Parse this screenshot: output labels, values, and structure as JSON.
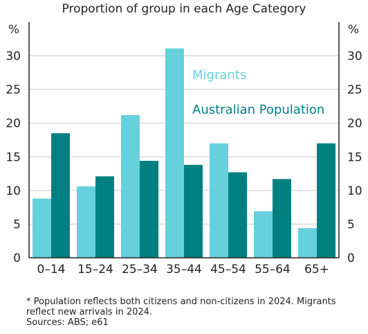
{
  "chart_data": {
    "type": "bar",
    "title": "Proportion of group in each Age Category",
    "unit_left": "%",
    "unit_right": "%",
    "categories": [
      "0–14",
      "15–24",
      "25–34",
      "35–44",
      "45–54",
      "55–64",
      "65+"
    ],
    "series": [
      {
        "name": "Migrants",
        "color": "#66d0dc",
        "values": [
          8.8,
          10.6,
          21.2,
          31.1,
          17.0,
          6.9,
          4.4
        ]
      },
      {
        "name": "Australian Population",
        "color": "#008080",
        "values": [
          18.5,
          12.1,
          14.4,
          13.8,
          12.7,
          11.7,
          17.0
        ]
      }
    ],
    "ylim": [
      0,
      35
    ],
    "yticks": [
      0,
      5,
      10,
      15,
      20,
      25,
      30
    ],
    "grid": true,
    "legend": "inside-top-right"
  },
  "notes": {
    "footnote": "* Population reflects both citizens and non-citizens in 2024. Migrants reflect new arrivals in 2024.",
    "sources": "Sources: ABS; e61"
  }
}
